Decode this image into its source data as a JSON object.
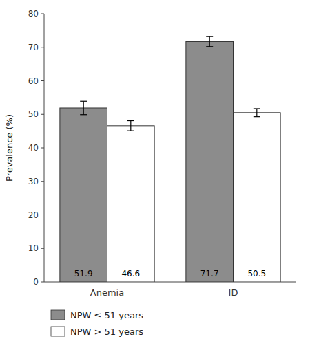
{
  "chart_data": {
    "type": "bar",
    "categories": [
      "Anemia",
      "ID"
    ],
    "series": [
      {
        "name": "NPW ≤ 51 years",
        "color": "#8c8c8c",
        "values": [
          51.9,
          71.7
        ],
        "errors": [
          2.0,
          1.5
        ]
      },
      {
        "name": "NPW > 51 years",
        "color": "#ffffff",
        "values": [
          46.6,
          50.5
        ],
        "errors": [
          1.5,
          1.2
        ]
      }
    ],
    "ylabel": "Prevalence (%)",
    "ylim": [
      0,
      80
    ],
    "yticks": [
      0,
      10,
      20,
      30,
      40,
      50,
      60,
      70,
      80
    ],
    "data_labels": true,
    "grid": false,
    "legend": "bottom"
  }
}
